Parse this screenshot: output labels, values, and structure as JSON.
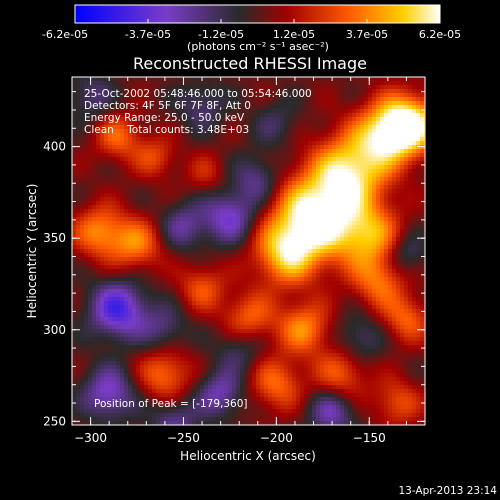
{
  "colorbar": {
    "ticks": [
      "-6.2e-05",
      "-3.7e-05",
      "-1.2e-05",
      "1.2e-05",
      "3.7e-05",
      "6.2e-05"
    ],
    "unit_label": "(photons cm⁻² s⁻¹ asec⁻²)"
  },
  "chart_data": {
    "type": "heatmap",
    "title": "Reconstructed RHESSI Image",
    "xlabel": "Heliocentric X (arcsec)",
    "ylabel": "Heliocentric Y (arcsec)",
    "xlim": [
      -310,
      -120
    ],
    "ylim": [
      248,
      438
    ],
    "xticks": [
      -300,
      -250,
      -200,
      -150
    ],
    "yticks": [
      250,
      300,
      350,
      400
    ],
    "colorscale": {
      "min": -6.2e-05,
      "max": 6.2e-05,
      "stops": [
        "#0000ff",
        "#7a3cc8",
        "#2a2a2a",
        "#a00000",
        "#ff5a00",
        "#ffd000",
        "#ffffff"
      ]
    },
    "sources": [
      {
        "x": -179,
        "y": 360,
        "value": 6.2e-05,
        "r": 16
      },
      {
        "x": -160,
        "y": 385,
        "value": 5e-05,
        "r": 14
      },
      {
        "x": -140,
        "y": 405,
        "value": 4.6e-05,
        "r": 12
      },
      {
        "x": -128,
        "y": 410,
        "value": 5.2e-05,
        "r": 11
      },
      {
        "x": -195,
        "y": 340,
        "value": 4.2e-05,
        "r": 12
      },
      {
        "x": -150,
        "y": 350,
        "value": 3.8e-05,
        "r": 12
      },
      {
        "x": -145,
        "y": 325,
        "value": 3e-05,
        "r": 10
      },
      {
        "x": -185,
        "y": 300,
        "value": 3.5e-05,
        "r": 10
      },
      {
        "x": -215,
        "y": 305,
        "value": 3e-05,
        "r": 10
      },
      {
        "x": -200,
        "y": 270,
        "value": 3e-05,
        "r": 10
      },
      {
        "x": -260,
        "y": 275,
        "value": 3.2e-05,
        "r": 10
      },
      {
        "x": -165,
        "y": 275,
        "value": 2.8e-05,
        "r": 10
      },
      {
        "x": -295,
        "y": 352,
        "value": 3.5e-05,
        "r": 10
      },
      {
        "x": -275,
        "y": 345,
        "value": 3.2e-05,
        "r": 10
      },
      {
        "x": -285,
        "y": 403,
        "value": 2.8e-05,
        "r": 9
      },
      {
        "x": -265,
        "y": 392,
        "value": 2.2e-05,
        "r": 8
      },
      {
        "x": -240,
        "y": 322,
        "value": 2.5e-05,
        "r": 9
      },
      {
        "x": -238,
        "y": 383,
        "value": 1.5e-05,
        "r": 8
      },
      {
        "x": -130,
        "y": 305,
        "value": 2.8e-05,
        "r": 9
      },
      {
        "x": -135,
        "y": 260,
        "value": 2.5e-05,
        "r": 9
      },
      {
        "x": -285,
        "y": 310,
        "value": -4.5e-05,
        "r": 11
      },
      {
        "x": -290,
        "y": 265,
        "value": -3.5e-05,
        "r": 10
      },
      {
        "x": -255,
        "y": 250,
        "value": -2.5e-05,
        "r": 9
      },
      {
        "x": -230,
        "y": 265,
        "value": -3e-05,
        "r": 9
      },
      {
        "x": -225,
        "y": 360,
        "value": -3.5e-05,
        "r": 10
      },
      {
        "x": -210,
        "y": 380,
        "value": -2.5e-05,
        "r": 9
      },
      {
        "x": -250,
        "y": 355,
        "value": -2.5e-05,
        "r": 9
      },
      {
        "x": -260,
        "y": 300,
        "value": -2e-05,
        "r": 9
      },
      {
        "x": -220,
        "y": 290,
        "value": -2e-05,
        "r": 9
      },
      {
        "x": -170,
        "y": 255,
        "value": -3e-05,
        "r": 9
      },
      {
        "x": -155,
        "y": 295,
        "value": -2e-05,
        "r": 9
      },
      {
        "x": -130,
        "y": 340,
        "value": -2e-05,
        "r": 8
      },
      {
        "x": -300,
        "y": 425,
        "value": -2e-05,
        "r": 9
      },
      {
        "x": -240,
        "y": 420,
        "value": -2e-05,
        "r": 9
      },
      {
        "x": -200,
        "y": 410,
        "value": -1.5e-05,
        "r": 9
      }
    ],
    "background": 2e-06,
    "annotations": [
      "25-Oct-2002 05:48:46.000 to 05:54:46.000",
      "Detectors: 4F 5F 6F 7F 8F, Att 0",
      "Energy Range: 25.0 - 50.0 keV",
      "Clean    Total counts: 3.48E+03",
      "Position of Peak = [-179,360]"
    ]
  },
  "footer": {
    "timestamp": "13-Apr-2013 23:14"
  }
}
